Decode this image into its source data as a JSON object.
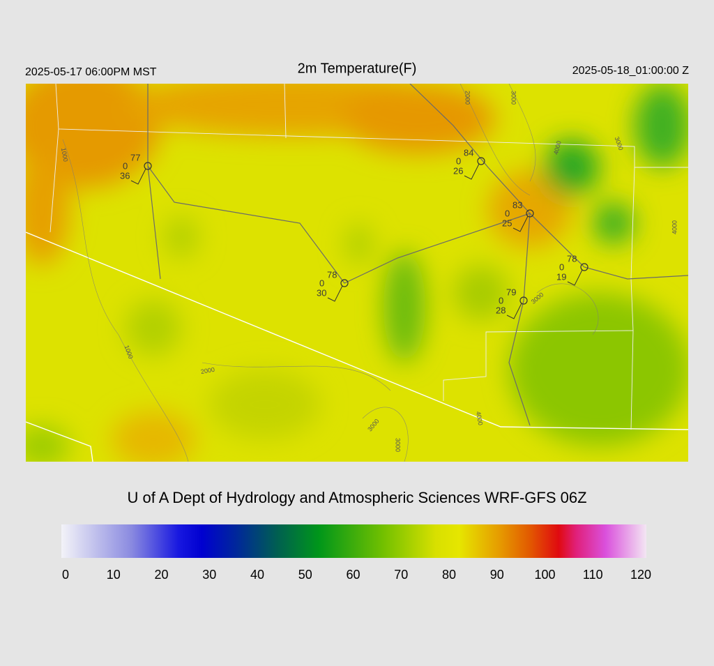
{
  "header": {
    "left": "2025-05-17 06:00PM MST",
    "title": "2m Temperature(F)",
    "right": "2025-05-18_01:00:00 Z"
  },
  "stations": [
    {
      "temperature": 77,
      "left": 0,
      "dewpoint": 36
    },
    {
      "temperature": 84,
      "left": 0,
      "dewpoint": 26
    },
    {
      "temperature": 83,
      "left": 0,
      "dewpoint": 25
    },
    {
      "temperature": 78,
      "left": 0,
      "dewpoint": 19
    },
    {
      "temperature": 78,
      "left": 0,
      "dewpoint": 30
    },
    {
      "temperature": 79,
      "left": 0,
      "dewpoint": 28
    }
  ],
  "contour_labels": [
    1000,
    2000,
    3000,
    4000,
    3000,
    4000,
    1000,
    2000,
    3000,
    3000,
    3000,
    4000
  ],
  "credit": "U of A Dept of Hydrology and Atmospheric Sciences WRF-GFS 06Z",
  "colorbar": {
    "range": [
      0,
      120
    ],
    "ticks": [
      0,
      10,
      20,
      30,
      40,
      50,
      60,
      70,
      80,
      90,
      100,
      110,
      120
    ]
  }
}
